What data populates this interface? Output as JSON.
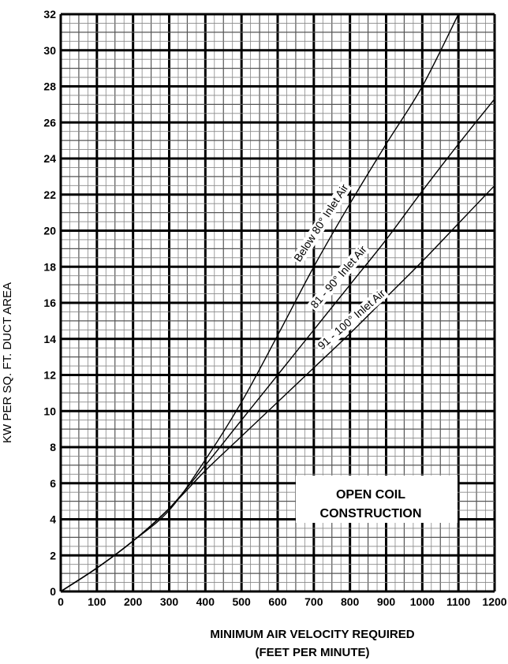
{
  "chart_data": {
    "type": "line",
    "xlabel": [
      "MINIMUM AIR VELOCITY REQUIRED",
      "(FEET PER MINUTE)"
    ],
    "ylabel": "KW PER SQ. FT. DUCT AREA",
    "xlim": [
      0,
      1200
    ],
    "ylim": [
      0,
      32
    ],
    "x_ticks": [
      0,
      100,
      200,
      300,
      400,
      500,
      600,
      700,
      800,
      900,
      1000,
      1100,
      1200
    ],
    "y_ticks": [
      0,
      2,
      4,
      6,
      8,
      10,
      12,
      14,
      16,
      18,
      20,
      22,
      24,
      26,
      28,
      30,
      32
    ],
    "grid": true,
    "annotation": [
      "OPEN COIL",
      "CONSTRUCTION"
    ],
    "series": [
      {
        "name": "Below 80° Inlet Air",
        "x": [
          0,
          100,
          200,
          300,
          400,
          500,
          600,
          700,
          800,
          900,
          1000,
          1100
        ],
        "y": [
          0,
          1.3,
          2.8,
          4.5,
          7.3,
          10.5,
          14.2,
          18.0,
          21.5,
          24.8,
          28.0,
          32.0
        ]
      },
      {
        "name": "81 - 90° Inlet Air",
        "x": [
          0,
          100,
          200,
          300,
          400,
          500,
          600,
          700,
          800,
          900,
          1000,
          1100,
          1200
        ],
        "y": [
          0,
          1.3,
          2.8,
          4.6,
          7.0,
          9.5,
          12.0,
          14.5,
          17.0,
          19.5,
          22.2,
          24.8,
          27.3
        ]
      },
      {
        "name": "91 - 100° Inlet Air",
        "x": [
          0,
          100,
          200,
          300,
          400,
          500,
          600,
          700,
          800,
          900,
          1000,
          1100,
          1200
        ],
        "y": [
          0,
          1.3,
          2.8,
          4.6,
          6.7,
          8.6,
          10.5,
          12.4,
          14.3,
          16.3,
          18.3,
          20.4,
          22.5
        ]
      }
    ]
  }
}
